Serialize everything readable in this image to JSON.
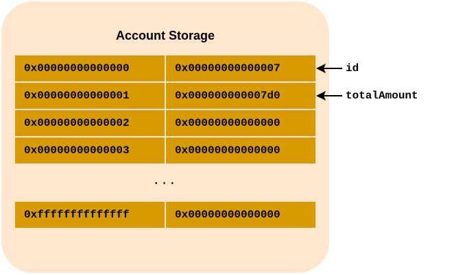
{
  "diagram": {
    "title": "Account Storage",
    "rows": [
      {
        "key": "0x00000000000000",
        "value": "0x00000000000007"
      },
      {
        "key": "0x00000000000001",
        "value": "0x000000000007d0"
      },
      {
        "key": "0x00000000000002",
        "value": "0x00000000000000"
      },
      {
        "key": "0x00000000000003",
        "value": "0x00000000000000"
      }
    ],
    "ellipsis": "...",
    "last_row": {
      "key": "0xffffffffffffff",
      "value": "0x00000000000000"
    },
    "annotations": [
      {
        "label": "id"
      },
      {
        "label": "totalAmount"
      }
    ],
    "colors": {
      "panel": "#ffe6cc",
      "cell": "#d79b00",
      "text": "#000000"
    }
  }
}
